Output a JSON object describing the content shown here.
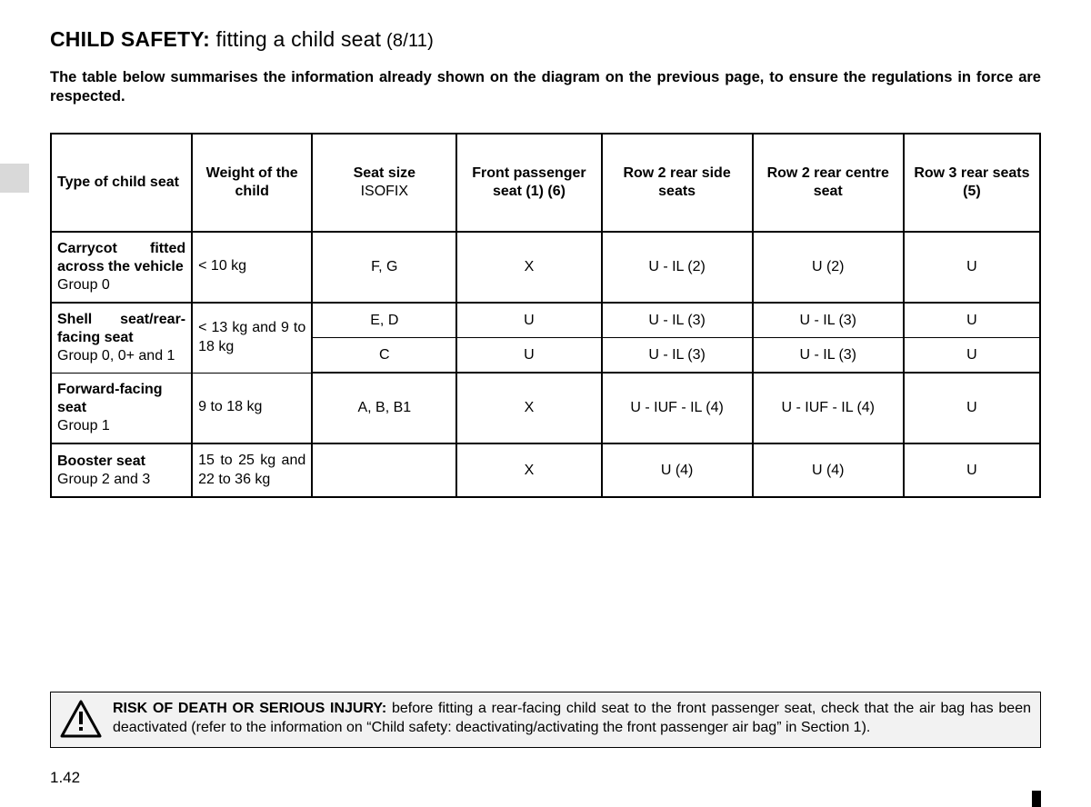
{
  "title": {
    "bold": "CHILD SAFETY:",
    "rest": " fitting a child seat",
    "page": " (8/11)"
  },
  "intro": "The table below summarises the information already shown on the diagram on the previous page, to ensure the regulations in force are respected.",
  "table": {
    "columns": [
      {
        "main": "Type of child seat",
        "sub": ""
      },
      {
        "main": "Weight of the child",
        "sub": ""
      },
      {
        "main": "Seat size",
        "sub": "ISOFIX"
      },
      {
        "main": "Front passenger seat (1) (6)",
        "sub": ""
      },
      {
        "main": "Row 2 rear side seats",
        "sub": ""
      },
      {
        "main": "Row 2 rear centre seat",
        "sub": ""
      },
      {
        "main": "Row 3 rear seats (5)",
        "sub": ""
      }
    ],
    "rows": [
      {
        "type_main": "Carrycot fitted across the vehicle",
        "type_sub": "Group 0",
        "weight": "< 10 kg",
        "size": "F, G",
        "front": "X",
        "row2side": "U - IL (2)",
        "row2centre": "U (2)",
        "row3": "U",
        "group_end": true
      },
      {
        "type_main": "Shell seat/rear-facing seat",
        "type_sub": "Group 0, 0+ and 1",
        "weight": "< 13 kg and 9 to 18 kg",
        "size": "E, D",
        "front": "U",
        "row2side": "U - IL (3)",
        "row2centre": "U - IL (3)",
        "row3": "U",
        "rowspan_type": 2,
        "rowspan_weight": 2
      },
      {
        "size": "C",
        "front": "U",
        "row2side": "U - IL (3)",
        "row2centre": "U - IL (3)",
        "row3": "U",
        "group_end": true
      },
      {
        "type_main": "Forward-facing seat",
        "type_sub": "Group 1",
        "weight": "9 to 18 kg",
        "size": "A, B, B1",
        "front": "X",
        "row2side": "U - IUF - IL (4)",
        "row2centre": "U - IUF - IL (4)",
        "row3": "U",
        "group_end": true
      },
      {
        "type_main": "Booster seat",
        "type_sub": "Group 2 and 3",
        "weight": "15 to 25 kg and 22 to 36 kg",
        "size": "",
        "front": "X",
        "row2side": "U (4)",
        "row2centre": "U (4)",
        "row3": "U",
        "group_end": true
      }
    ]
  },
  "warning": {
    "lead": "RISK OF DEATH OR SERIOUS INJURY:",
    "body": " before fitting a rear-facing child seat to the front passenger seat, check that the air bag has been deactivated (refer to the information on “Child safety: deactivating/activating the front passenger air bag” in Section 1)."
  },
  "page_number": "1.42",
  "colors": {
    "side_tab": "#d9d9d9",
    "warning_bg": "#f2f2f2",
    "border": "#000000",
    "text": "#000000"
  }
}
